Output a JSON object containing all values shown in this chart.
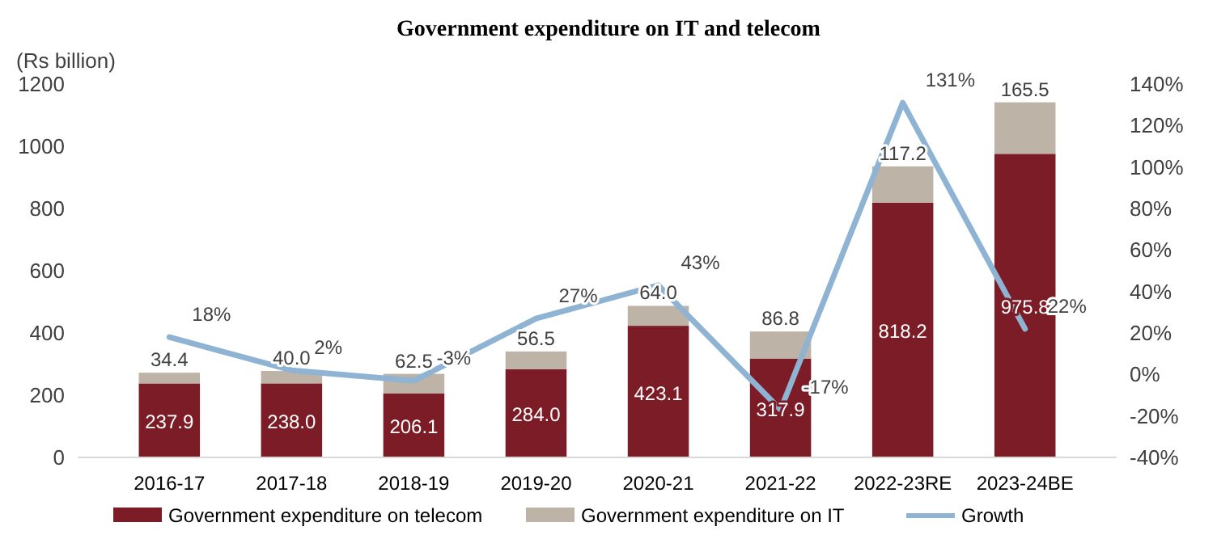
{
  "chart_data": {
    "type": "bar",
    "title": "Government expenditure on IT and telecom",
    "ylabel": "(Rs billion)",
    "categories": [
      "2016-17",
      "2017-18",
      "2018-19",
      "2019-20",
      "2020-21",
      "2021-22",
      "2022-23RE",
      "2023-24BE"
    ],
    "stacked": true,
    "legend": "bottom",
    "grid": false,
    "series": [
      {
        "name": "Government expenditure on telecom",
        "color": "#7b1c26",
        "values": [
          237.9,
          238.0,
          206.1,
          284.0,
          423.1,
          317.9,
          818.2,
          975.8
        ],
        "value_labels": [
          "237.9",
          "238.0",
          "206.1",
          "284.0",
          "423.1",
          "317.9",
          "818.2",
          "975.8"
        ]
      },
      {
        "name": "Government expenditure on IT",
        "color": "#bdb3a6",
        "values": [
          34.4,
          40.0,
          62.5,
          56.5,
          64.0,
          86.8,
          117.2,
          165.5
        ],
        "value_labels": [
          "34.4",
          "40.0",
          "62.5",
          "56.5",
          "64.0",
          "86.8",
          "117.2",
          "165.5"
        ]
      },
      {
        "name": "Growth",
        "type": "line",
        "axis": "y2",
        "color": "#8fb3d3",
        "values": [
          18,
          2,
          -3,
          27,
          43,
          -17,
          131,
          22
        ],
        "value_labels": [
          "18%",
          "2%",
          "-3%",
          "27%",
          "43%",
          "-17%",
          "131%",
          "22%"
        ]
      }
    ],
    "ylim": [
      0,
      1200
    ],
    "yticks": [
      0,
      200,
      400,
      600,
      800,
      1000,
      1200
    ],
    "y2lim": [
      -40,
      140
    ],
    "y2ticks": [
      {
        "value": -40,
        "label": "-40%"
      },
      {
        "value": -20,
        "label": "-20%"
      },
      {
        "value": 0,
        "label": "0%"
      },
      {
        "value": 20,
        "label": "20%"
      },
      {
        "value": 40,
        "label": "40%"
      },
      {
        "value": 60,
        "label": "60%"
      },
      {
        "value": 80,
        "label": "80%"
      },
      {
        "value": 100,
        "label": "100%"
      },
      {
        "value": 120,
        "label": "120%"
      },
      {
        "value": 140,
        "label": "140%"
      }
    ]
  }
}
